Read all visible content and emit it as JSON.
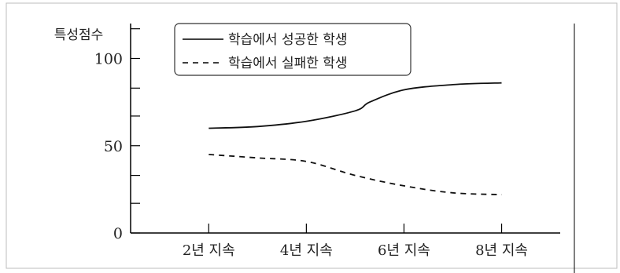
{
  "chart_data": {
    "type": "line",
    "title": "",
    "ylabel": "특성점수",
    "xlabel": "",
    "x_categories": [
      "2년 지속",
      "4년 지속",
      "6년 지속",
      "8년 지속"
    ],
    "x_positions": [
      2,
      4,
      6,
      8
    ],
    "xlim": [
      0.4,
      9.2
    ],
    "ylim": [
      0,
      120
    ],
    "y_ticks": [
      0,
      50,
      100
    ],
    "y_minor_ticks": [
      0,
      17,
      33,
      50,
      67,
      83,
      100,
      117
    ],
    "grid": false,
    "legend_position": "top-left",
    "series": [
      {
        "name": "학습에서 성공한 학생",
        "style": "solid",
        "points": [
          [
            2,
            60
          ],
          [
            3,
            61
          ],
          [
            4,
            64
          ],
          [
            5,
            70
          ],
          [
            5.3,
            75
          ],
          [
            6,
            82
          ],
          [
            7,
            85
          ],
          [
            8,
            86
          ]
        ]
      },
      {
        "name": "학습에서 실패한 학생",
        "style": "dashed",
        "points": [
          [
            2,
            45
          ],
          [
            3,
            43
          ],
          [
            4,
            41
          ],
          [
            5,
            33
          ],
          [
            6,
            27
          ],
          [
            7,
            23
          ],
          [
            8,
            22
          ]
        ]
      }
    ]
  }
}
